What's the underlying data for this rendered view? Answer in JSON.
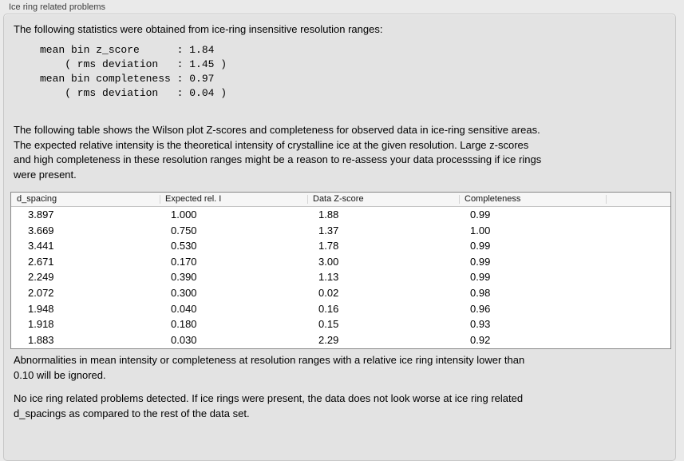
{
  "panel": {
    "title": "Ice ring related problems"
  },
  "colors": {
    "page_bg": "#eaeaea",
    "panel_bg": "#e3e3e3",
    "panel_border": "#c7c7c7",
    "table_border": "#888888",
    "table_header_bg": "#f6f6f6",
    "text": "#000000"
  },
  "intro": {
    "text": "The following statistics were obtained from ice-ring insensitive resolution ranges:"
  },
  "stats_block": {
    "text": "mean bin z_score      : 1.84\n    ( rms deviation   : 1.45 )\nmean bin completeness : 0.97\n    ( rms deviation   : 0.04 )",
    "mean_bin_z_score": "1.84",
    "z_score_rms_deviation": "1.45",
    "mean_bin_completeness": "0.97",
    "completeness_rms_deviation": "0.04"
  },
  "description": {
    "text": "The following table shows the Wilson plot Z-scores and completeness for observed data in ice-ring sensitive areas.\nThe expected relative intensity is the theoretical intensity of crystalline ice at the given resolution. Large z-scores\nand high completeness in these resolution ranges might be a reason to re-assess your data processsing if ice rings\nwere present."
  },
  "table": {
    "columns": [
      "d_spacing",
      "Expected rel. I",
      "Data Z-score",
      "Completeness"
    ],
    "rows": [
      [
        "3.897",
        "1.000",
        "1.88",
        "0.99"
      ],
      [
        "3.669",
        "0.750",
        "1.37",
        "1.00"
      ],
      [
        "3.441",
        "0.530",
        "1.78",
        "0.99"
      ],
      [
        "2.671",
        "0.170",
        "3.00",
        "0.99"
      ],
      [
        "2.249",
        "0.390",
        "1.13",
        "0.99"
      ],
      [
        "2.072",
        "0.300",
        "0.02",
        "0.98"
      ],
      [
        "1.948",
        "0.040",
        "0.16",
        "0.96"
      ],
      [
        "1.918",
        "0.180",
        "0.15",
        "0.93"
      ],
      [
        "1.883",
        "0.030",
        "2.29",
        "0.92"
      ]
    ]
  },
  "notes": {
    "ignore_note": "Abnormalities in mean intensity or completeness at resolution ranges with a relative ice ring intensity lower than\n0.10 will be ignored.",
    "conclusion": "No ice ring related problems detected. If ice rings were present, the data does not look worse at ice ring related\nd_spacings as compared to the rest of the data set."
  }
}
